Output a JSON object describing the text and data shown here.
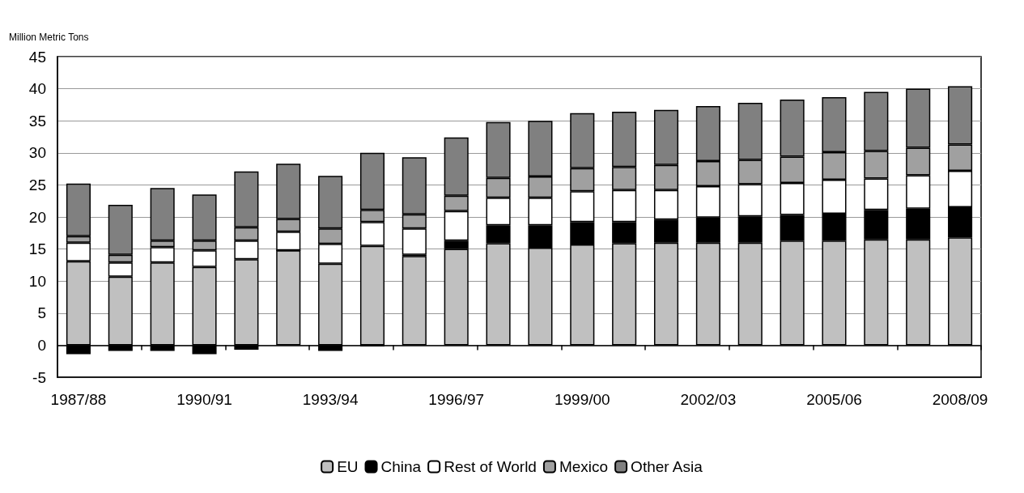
{
  "chart_data": {
    "type": "bar",
    "stacked": true,
    "ylabel": "Million Metric Tons",
    "categories": [
      "1987/88",
      null,
      null,
      "1990/91",
      null,
      null,
      "1993/94",
      null,
      null,
      "1996/97",
      null,
      null,
      "1999/00",
      null,
      null,
      "2002/03",
      null,
      null,
      "2005/06",
      null,
      null,
      "2008/09"
    ],
    "series": [
      {
        "name": "EU",
        "color": "#c0c0c0",
        "values": [
          13.1,
          10.7,
          12.9,
          12.2,
          13.4,
          14.8,
          12.7,
          15.5,
          13.9,
          15.0,
          15.9,
          15.2,
          15.7,
          15.9,
          16.0,
          16.0,
          16.0,
          16.3,
          16.3,
          16.5,
          16.5,
          16.8
        ]
      },
      {
        "name": "China",
        "color": "#000000",
        "values": [
          -1.4,
          -0.9,
          -0.9,
          -1.4,
          -0.7,
          0,
          -0.9,
          -0.2,
          0.2,
          1.3,
          2.8,
          3.5,
          3.5,
          3.3,
          3.6,
          3.9,
          4.1,
          4.0,
          4.2,
          4.6,
          4.8,
          4.7
        ]
      },
      {
        "name": "Rest of World",
        "color": "#ffffff",
        "values": [
          2.9,
          2.2,
          2.4,
          2.6,
          2.9,
          2.9,
          3.1,
          3.7,
          4.1,
          4.6,
          4.3,
          4.3,
          4.8,
          5.0,
          4.6,
          4.9,
          5.0,
          5.0,
          5.3,
          4.9,
          5.2,
          5.7
        ]
      },
      {
        "name": "Mexico",
        "color": "#a0a0a0",
        "values": [
          1.0,
          1.2,
          1.0,
          1.5,
          2.1,
          2.0,
          2.4,
          1.9,
          2.2,
          2.4,
          3.1,
          3.3,
          3.6,
          3.6,
          3.9,
          3.9,
          3.8,
          4.1,
          4.3,
          4.3,
          4.3,
          4.1
        ]
      },
      {
        "name": "Other Asia",
        "color": "#808080",
        "values": [
          8.2,
          7.8,
          8.2,
          7.2,
          8.7,
          8.6,
          8.2,
          8.9,
          8.9,
          9.1,
          8.7,
          8.7,
          8.6,
          8.6,
          8.6,
          8.6,
          8.9,
          8.9,
          8.6,
          9.2,
          9.2,
          9.1
        ]
      }
    ],
    "ylim": [
      -5,
      45
    ],
    "yticks": [
      -5,
      0,
      5,
      10,
      15,
      20,
      25,
      30,
      35,
      40,
      45
    ],
    "grid": "y",
    "legend": "bottom"
  }
}
